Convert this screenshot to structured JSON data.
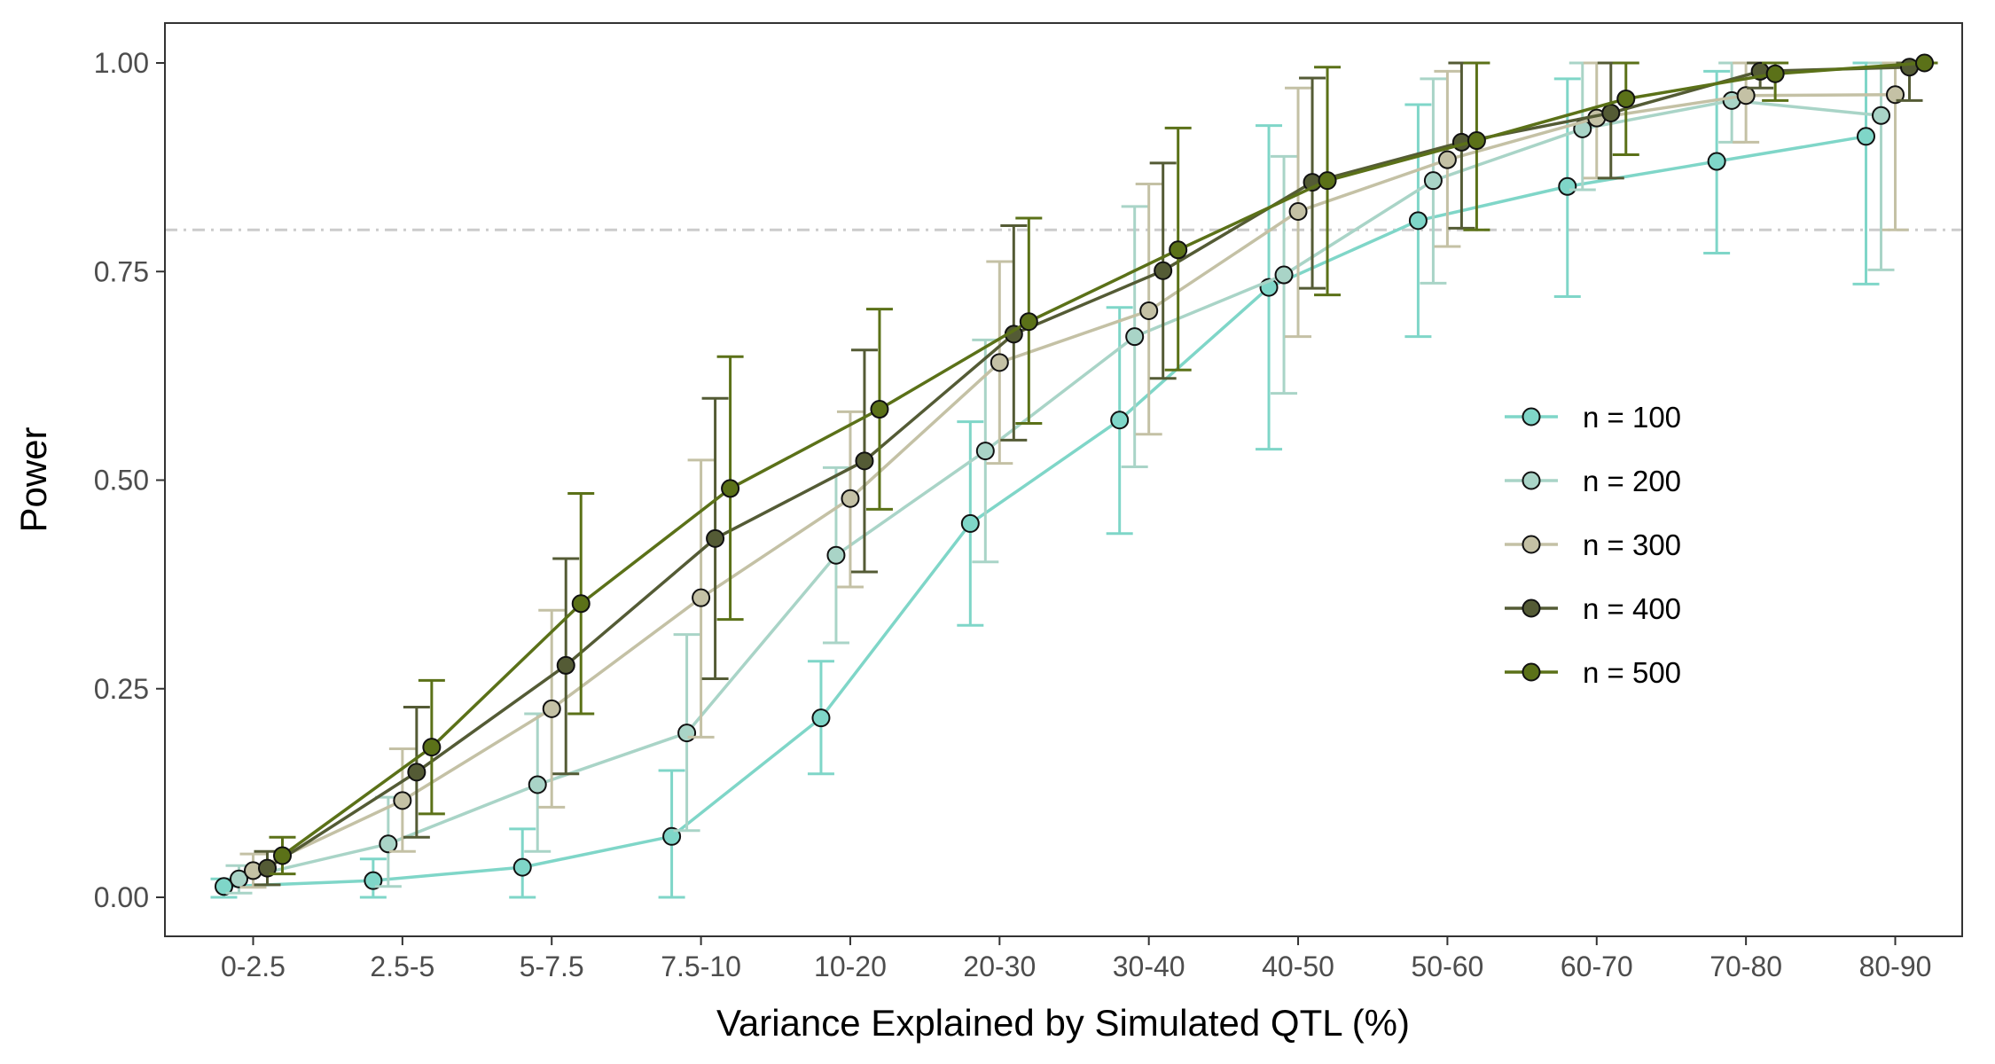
{
  "chart_data": {
    "type": "line",
    "xlabel": "Variance Explained by Simulated QTL (%)",
    "ylabel": "Power",
    "categories": [
      "0-2.5",
      "2.5-5",
      "5-7.5",
      "7.5-10",
      "10-20",
      "20-30",
      "30-40",
      "40-50",
      "50-60",
      "60-70",
      "70-80",
      "80-90"
    ],
    "ylim": [
      -0.05,
      1.05
    ],
    "yticks": [
      0.0,
      0.25,
      0.5,
      0.75,
      1.0
    ],
    "ytick_labels": [
      "0.00",
      "0.25",
      "0.50",
      "0.75",
      "1.00"
    ],
    "reference_line": 0.8,
    "grid": false,
    "legend_position": "right",
    "series": [
      {
        "name": "n = 100",
        "color": "#7fd6c8",
        "values": [
          0.013,
          0.02,
          0.036,
          0.073,
          0.215,
          0.448,
          0.572,
          0.731,
          0.811,
          0.852,
          0.882,
          0.912
        ],
        "lower": [
          0.0,
          0.0,
          0.0,
          0.0,
          0.148,
          0.326,
          0.436,
          0.537,
          0.672,
          0.72,
          0.772,
          0.735
        ],
        "upper": [
          0.022,
          0.046,
          0.082,
          0.152,
          0.283,
          0.57,
          0.707,
          0.925,
          0.95,
          0.981,
          0.99,
          1.0
        ]
      },
      {
        "name": "n = 200",
        "color": "#a9d4c7",
        "values": [
          0.022,
          0.064,
          0.135,
          0.197,
          0.41,
          0.535,
          0.672,
          0.746,
          0.859,
          0.921,
          0.955,
          0.937
        ],
        "lower": [
          0.005,
          0.013,
          0.055,
          0.08,
          0.305,
          0.402,
          0.516,
          0.604,
          0.736,
          0.848,
          0.905,
          0.752
        ],
        "upper": [
          0.038,
          0.12,
          0.22,
          0.315,
          0.515,
          0.668,
          0.828,
          0.888,
          0.981,
          1.0,
          1.0,
          1.0
        ]
      },
      {
        "name": "n = 300",
        "color": "#c4c1a5",
        "values": [
          0.032,
          0.116,
          0.226,
          0.359,
          0.478,
          0.641,
          0.703,
          0.822,
          0.884,
          0.934,
          0.961,
          0.962
        ],
        "lower": [
          0.012,
          0.055,
          0.108,
          0.192,
          0.372,
          0.52,
          0.555,
          0.672,
          0.78,
          0.862,
          0.905,
          0.8
        ],
        "upper": [
          0.052,
          0.178,
          0.344,
          0.524,
          0.582,
          0.762,
          0.855,
          0.97,
          0.99,
          1.0,
          1.0,
          1.0
        ]
      },
      {
        "name": "n = 400",
        "color": "#545b35",
        "values": [
          0.035,
          0.15,
          0.278,
          0.43,
          0.523,
          0.675,
          0.751,
          0.857,
          0.905,
          0.94,
          0.99,
          0.995
        ],
        "lower": [
          0.015,
          0.072,
          0.148,
          0.262,
          0.39,
          0.548,
          0.622,
          0.73,
          0.802,
          0.862,
          0.97,
          0.955
        ],
        "upper": [
          0.055,
          0.228,
          0.406,
          0.598,
          0.656,
          0.805,
          0.88,
          0.982,
          1.0,
          1.0,
          1.0,
          1.0
        ]
      },
      {
        "name": "n = 500",
        "color": "#5b7118",
        "values": [
          0.05,
          0.18,
          0.352,
          0.49,
          0.585,
          0.69,
          0.776,
          0.859,
          0.907,
          0.957,
          0.987,
          1.0
        ],
        "lower": [
          0.028,
          0.1,
          0.22,
          0.333,
          0.465,
          0.568,
          0.632,
          0.722,
          0.8,
          0.89,
          0.955,
          1.0
        ],
        "upper": [
          0.072,
          0.26,
          0.484,
          0.648,
          0.705,
          0.814,
          0.922,
          0.995,
          1.0,
          1.0,
          1.0,
          1.0
        ]
      }
    ]
  }
}
